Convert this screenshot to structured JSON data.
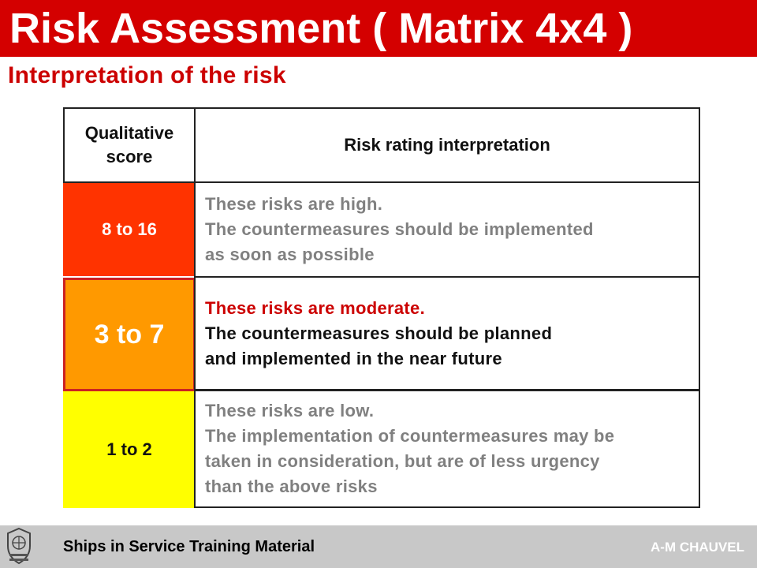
{
  "header": {
    "title": "Risk Assessment ( Matrix 4x4 )",
    "subtitle": "Interpretation of the risk"
  },
  "table": {
    "col_score_line1": "Qualitative",
    "col_score_line2": "score",
    "col_interpretation": "Risk rating interpretation",
    "rows": [
      {
        "score": "8 to 16",
        "color": "#ff3300",
        "lines": [
          "These risks are high.",
          "The countermeasures should be implemented",
          "as soon as possible"
        ]
      },
      {
        "score": "3 to 7",
        "color": "#ff9900",
        "lines": [
          "These risks are moderate.",
          "The countermeasures should be planned",
          "and implemented in the near future"
        ]
      },
      {
        "score": "1 to 2",
        "color": "#ffff00",
        "lines": [
          "These risks are low.",
          "The implementation of countermeasures may be",
          "taken in consideration, but are of less urgency",
          "than the above risks"
        ]
      }
    ]
  },
  "footer": {
    "course": "Ships in Service Training Material",
    "author": "A-M CHAUVEL",
    "logo_icon": "bureau-veritas-logo-icon"
  },
  "colors": {
    "title_bar": "#d40000",
    "subtitle": "#cc0000",
    "footer": "#c8c8c8"
  }
}
